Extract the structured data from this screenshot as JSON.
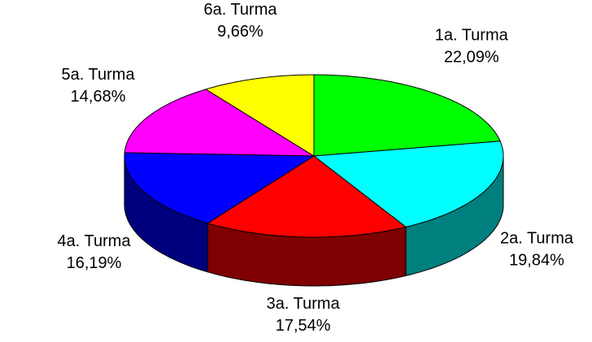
{
  "chart_data": {
    "type": "pie",
    "categories": [
      "1a. Turma",
      "2a. Turma",
      "3a. Turma",
      "4a. Turma",
      "5a. Turma",
      "6a. Turma"
    ],
    "values": [
      22.09,
      19.84,
      17.54,
      16.19,
      14.68,
      9.66
    ],
    "value_labels": [
      "22,09%",
      "19,84%",
      "17,54%",
      "16,19%",
      "14,68%",
      "9,66%"
    ],
    "colors": [
      "#00ff00",
      "#00ffff",
      "#ff0000",
      "#0000ff",
      "#ff00ff",
      "#ffff00"
    ]
  }
}
